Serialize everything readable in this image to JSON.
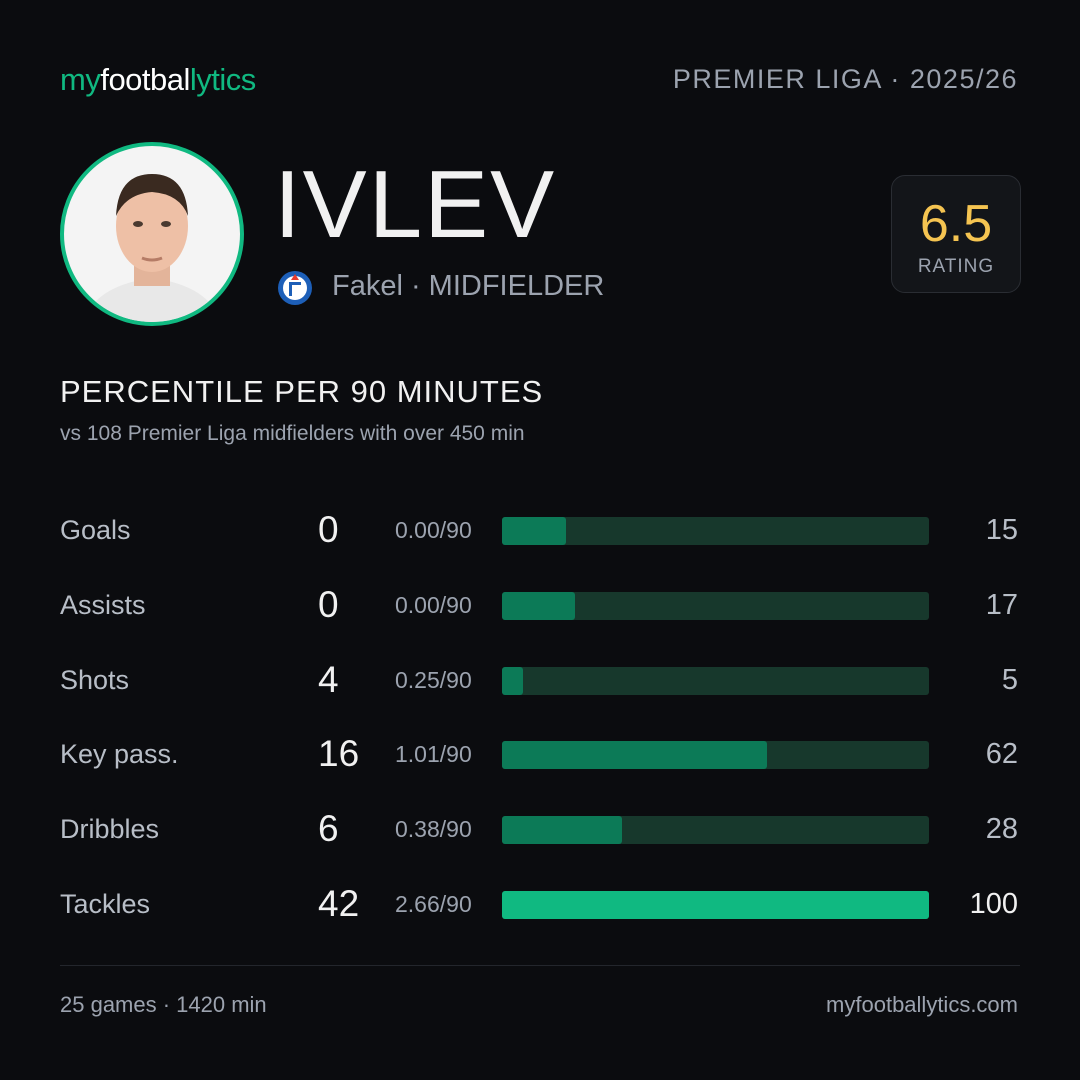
{
  "header": {
    "logo": [
      "my",
      "footbal",
      "lytics"
    ],
    "league": "PREMIER LIGA · 2025/26"
  },
  "player": {
    "name": "IVLEV",
    "team": "Fakel · MIDFIELDER",
    "rating": "6.5",
    "rating_label": "RATING"
  },
  "section": {
    "title": "PERCENTILE  PER 90 MINUTES",
    "subtitle": "vs 108 Premier Liga midfielders  with over 450 min"
  },
  "stats": {
    "xlim": [
      0,
      100
    ],
    "track_color": "#17382c",
    "bar_color": "#0c7a57",
    "top_color": "#10b981",
    "rows": [
      {
        "label": "Goals",
        "total": "0",
        "per90": "0.00/90",
        "percentile": 15
      },
      {
        "label": "Assists",
        "total": "0",
        "per90": "0.00/90",
        "percentile": 17
      },
      {
        "label": "Shots",
        "total": "4",
        "per90": "0.25/90",
        "percentile": 5
      },
      {
        "label": "Key pass.",
        "total": "16",
        "per90": "1.01/90",
        "percentile": 62
      },
      {
        "label": "Dribbles",
        "total": "6",
        "per90": "0.38/90",
        "percentile": 28
      },
      {
        "label": "Tackles",
        "total": "42",
        "per90": "2.66/90",
        "percentile": 100
      }
    ]
  },
  "footer": {
    "left": "25 games · 1420 min",
    "right": "myfootballytics.com"
  }
}
